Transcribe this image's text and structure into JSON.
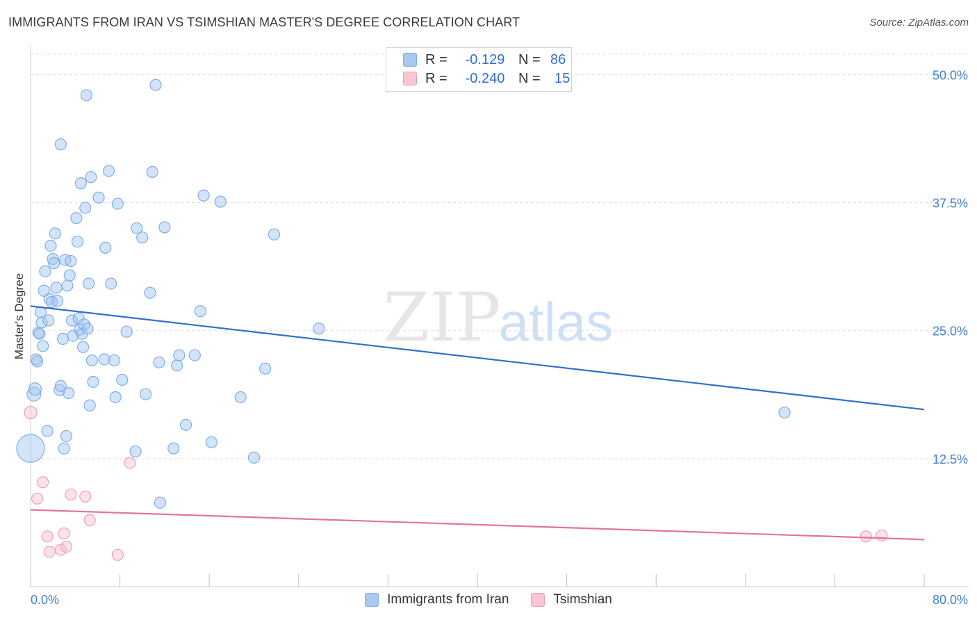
{
  "title": "IMMIGRANTS FROM IRAN VS TSIMSHIAN MASTER'S DEGREE CORRELATION CHART",
  "source": "Source: ZipAtlas.com",
  "watermark": {
    "zip": "ZIP",
    "atlas": "atlas"
  },
  "legend": {
    "rows": [
      {
        "r_label": "R =",
        "r_value": "-0.129",
        "n_label": "N =",
        "n_value": "86",
        "color": "#a9c8f0",
        "border": "#7eaee6"
      },
      {
        "r_label": "R =",
        "r_value": "-0.240",
        "n_label": "N =",
        "n_value": "15",
        "color": "#f7c5d3",
        "border": "#ee9fb5"
      }
    ]
  },
  "bottom_legend": [
    {
      "label": "Immigrants from Iran",
      "color": "#a9c8f0",
      "border": "#7eaee6"
    },
    {
      "label": "Tsimshian",
      "color": "#f7c5d3",
      "border": "#ee9fb5"
    }
  ],
  "colors": {
    "blue": "#2e6fcf",
    "blue_fill": "rgba(160,195,240,0.45)",
    "blue_stroke": "#7eaee6",
    "pink": "#e5739a",
    "pink_fill": "rgba(247,190,208,0.45)",
    "pink_stroke": "#ee9fb5",
    "grid": "#dcdcdc",
    "tick_label": "#3f7fd6"
  },
  "chart_data": {
    "type": "scatter",
    "title": "IMMIGRANTS FROM IRAN VS TSIMSHIAN MASTER'S DEGREE CORRELATION CHART",
    "xlabel": "",
    "ylabel": "Master's Degree",
    "xlim": [
      0,
      80
    ],
    "ylim": [
      0,
      52
    ],
    "x_tick_labels": [
      "0.0%",
      "80.0%"
    ],
    "y_ticks": [
      12.5,
      25.0,
      37.5,
      50.0
    ],
    "y_tick_labels": [
      "12.5%",
      "25.0%",
      "37.5%",
      "50.0%"
    ],
    "grid": true,
    "legend_position": "top-center",
    "series": [
      {
        "name": "Immigrants from Iran",
        "trend": {
          "x": [
            0,
            80
          ],
          "y": [
            27.4,
            17.3
          ]
        },
        "points": [
          [
            0.0,
            13.5,
            26
          ],
          [
            0.3,
            18.8,
            14
          ],
          [
            0.4,
            19.3,
            12
          ],
          [
            0.5,
            22.2,
            10
          ],
          [
            0.6,
            22.0,
            10
          ],
          [
            0.7,
            24.8,
            10
          ],
          [
            0.8,
            24.7,
            10
          ],
          [
            0.9,
            26.8,
            10
          ],
          [
            1.0,
            25.8,
            10
          ],
          [
            1.1,
            23.5,
            10
          ],
          [
            1.2,
            28.9,
            10
          ],
          [
            1.3,
            30.8,
            10
          ],
          [
            1.5,
            15.2,
            10
          ],
          [
            1.6,
            26.0,
            10
          ],
          [
            1.7,
            28.1,
            10
          ],
          [
            1.8,
            33.3,
            10
          ],
          [
            1.9,
            27.8,
            10
          ],
          [
            2.0,
            32.0,
            10
          ],
          [
            2.1,
            31.6,
            10
          ],
          [
            2.2,
            34.5,
            10
          ],
          [
            2.3,
            29.2,
            10
          ],
          [
            2.4,
            27.9,
            10
          ],
          [
            2.6,
            19.2,
            10
          ],
          [
            2.7,
            19.6,
            10
          ],
          [
            2.7,
            43.2,
            10
          ],
          [
            2.9,
            24.2,
            10
          ],
          [
            3.0,
            13.5,
            10
          ],
          [
            3.1,
            31.9,
            10
          ],
          [
            3.2,
            14.7,
            10
          ],
          [
            3.3,
            29.4,
            10
          ],
          [
            3.4,
            18.9,
            10
          ],
          [
            3.5,
            30.4,
            10
          ],
          [
            3.6,
            31.8,
            10
          ],
          [
            3.7,
            26.0,
            10
          ],
          [
            3.8,
            24.5,
            10
          ],
          [
            4.1,
            36.0,
            10
          ],
          [
            4.2,
            33.7,
            10
          ],
          [
            4.3,
            26.2,
            10
          ],
          [
            4.4,
            25.1,
            10
          ],
          [
            4.5,
            39.4,
            10
          ],
          [
            4.6,
            24.7,
            10
          ],
          [
            4.7,
            23.4,
            10
          ],
          [
            4.8,
            25.6,
            10
          ],
          [
            4.9,
            37.0,
            10
          ],
          [
            5.0,
            48.0,
            10
          ],
          [
            5.1,
            25.2,
            10
          ],
          [
            5.2,
            29.6,
            10
          ],
          [
            5.3,
            17.7,
            10
          ],
          [
            5.4,
            40.0,
            10
          ],
          [
            5.5,
            22.1,
            10
          ],
          [
            5.6,
            20.0,
            10
          ],
          [
            6.1,
            38.0,
            10
          ],
          [
            6.6,
            22.2,
            10
          ],
          [
            6.7,
            33.1,
            10
          ],
          [
            7.0,
            40.6,
            10
          ],
          [
            7.2,
            29.6,
            10
          ],
          [
            7.5,
            22.1,
            10
          ],
          [
            7.6,
            18.5,
            10
          ],
          [
            7.8,
            37.4,
            10
          ],
          [
            8.2,
            20.2,
            10
          ],
          [
            8.6,
            24.9,
            10
          ],
          [
            9.4,
            13.2,
            10
          ],
          [
            9.5,
            35.0,
            10
          ],
          [
            10.0,
            34.1,
            10
          ],
          [
            10.3,
            18.8,
            10
          ],
          [
            10.7,
            28.7,
            10
          ],
          [
            10.9,
            40.5,
            10
          ],
          [
            11.2,
            49.0,
            10
          ],
          [
            11.5,
            21.9,
            10
          ],
          [
            11.6,
            8.2,
            10
          ],
          [
            12.0,
            35.1,
            10
          ],
          [
            12.8,
            13.5,
            10
          ],
          [
            13.1,
            21.6,
            10
          ],
          [
            13.3,
            22.6,
            10
          ],
          [
            13.9,
            15.8,
            10
          ],
          [
            14.7,
            22.6,
            10
          ],
          [
            15.2,
            26.9,
            10
          ],
          [
            15.5,
            38.2,
            10
          ],
          [
            16.2,
            14.1,
            10
          ],
          [
            17.0,
            37.6,
            10
          ],
          [
            18.8,
            18.5,
            10
          ],
          [
            20.0,
            12.6,
            10
          ],
          [
            21.0,
            21.3,
            10
          ],
          [
            21.8,
            34.4,
            10
          ],
          [
            25.8,
            25.2,
            10
          ],
          [
            67.5,
            17.0,
            10
          ]
        ]
      },
      {
        "name": "Tsimshian",
        "trend": {
          "x": [
            0,
            80
          ],
          "y": [
            7.5,
            4.6
          ]
        },
        "points": [
          [
            0.0,
            17.0,
            12
          ],
          [
            0.6,
            8.6,
            10
          ],
          [
            1.1,
            10.2,
            10
          ],
          [
            1.5,
            4.9,
            10
          ],
          [
            1.7,
            3.4,
            10
          ],
          [
            2.7,
            3.6,
            10
          ],
          [
            3.0,
            5.2,
            10
          ],
          [
            3.2,
            3.9,
            10
          ],
          [
            3.6,
            9.0,
            10
          ],
          [
            4.9,
            8.8,
            10
          ],
          [
            5.3,
            6.5,
            10
          ],
          [
            7.8,
            3.1,
            10
          ],
          [
            8.9,
            12.1,
            10
          ],
          [
            74.8,
            4.9,
            10
          ],
          [
            76.2,
            5.0,
            10
          ]
        ]
      }
    ]
  }
}
